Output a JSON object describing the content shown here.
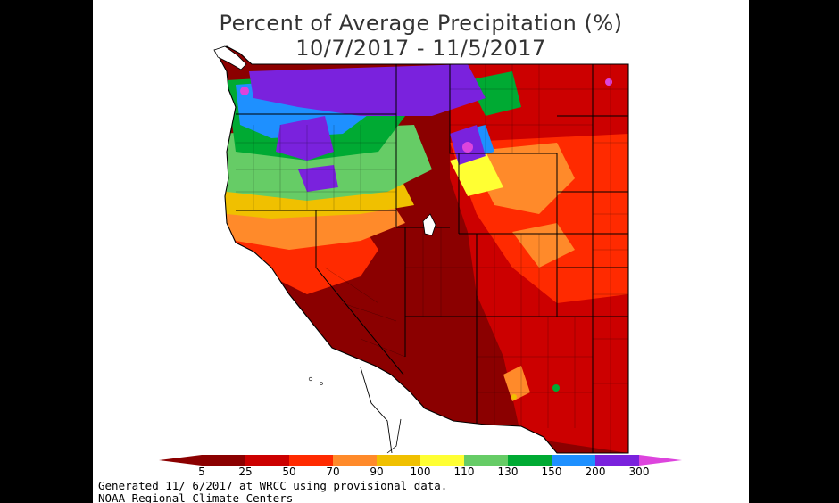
{
  "map": {
    "title_line1": "Percent of Average Precipitation (%)",
    "title_line2": "10/7/2017 - 11/5/2017",
    "colors": {
      "5": "#8b0000",
      "25": "#cc0000",
      "50": "#ff2a00",
      "70": "#ff8a2a",
      "90": "#f0c000",
      "100": "#ffff33",
      "110": "#66cc66",
      "130": "#00aa33",
      "150": "#1e90ff",
      "200": "#7a22dd",
      "300": "#dd44dd"
    }
  },
  "legend": {
    "ticks": [
      "5",
      "25",
      "50",
      "70",
      "90",
      "100",
      "110",
      "130",
      "150",
      "200",
      "300"
    ]
  },
  "footer": {
    "line1": "Generated 11/ 6/2017 at WRCC using provisional data.",
    "line2": "NOAA Regional Climate Centers"
  }
}
